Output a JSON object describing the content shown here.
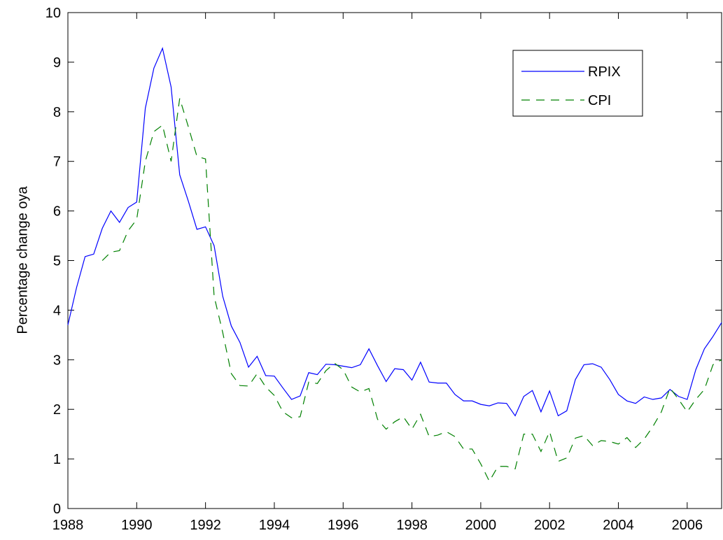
{
  "chart_data": {
    "type": "line",
    "y_label": "Percentage change oya",
    "x": [
      1988,
      1988.25,
      1988.5,
      1988.75,
      1989,
      1989.25,
      1989.5,
      1989.75,
      1990,
      1990.25,
      1990.5,
      1990.75,
      1991,
      1991.25,
      1991.5,
      1991.75,
      1992,
      1992.25,
      1992.5,
      1992.75,
      1993,
      1993.25,
      1993.5,
      1993.75,
      1994,
      1994.25,
      1994.5,
      1994.75,
      1995,
      1995.25,
      1995.5,
      1995.75,
      1996,
      1996.25,
      1996.5,
      1996.75,
      1997,
      1997.25,
      1997.5,
      1997.75,
      1998,
      1998.25,
      1998.5,
      1998.75,
      1999,
      1999.25,
      1999.5,
      1999.75,
      2000,
      2000.25,
      2000.5,
      2000.75,
      2001,
      2001.25,
      2001.5,
      2001.75,
      2002,
      2002.25,
      2002.5,
      2002.75,
      2003,
      2003.25,
      2003.5,
      2003.75,
      2004,
      2004.25,
      2004.5,
      2004.75,
      2005,
      2005.25,
      2005.5,
      2005.75,
      2006,
      2006.25,
      2006.5,
      2006.75,
      2007
    ],
    "series": [
      {
        "name": "RPIX",
        "color": "#0000ff",
        "line_style": "solid",
        "values": [
          3.7,
          4.45,
          5.08,
          5.13,
          5.65,
          6.0,
          5.77,
          6.07,
          6.18,
          8.07,
          8.88,
          9.28,
          8.5,
          6.73,
          6.2,
          5.63,
          5.68,
          5.3,
          4.28,
          3.68,
          3.35,
          2.85,
          3.07,
          2.68,
          2.67,
          2.43,
          2.2,
          2.27,
          2.74,
          2.7,
          2.91,
          2.9,
          2.87,
          2.84,
          2.9,
          3.22,
          2.88,
          2.56,
          2.82,
          2.8,
          2.59,
          2.95,
          2.55,
          2.53,
          2.53,
          2.3,
          2.17,
          2.17,
          2.1,
          2.07,
          2.13,
          2.12,
          1.87,
          2.26,
          2.38,
          1.95,
          2.37,
          1.87,
          1.97,
          2.6,
          2.9,
          2.92,
          2.85,
          2.6,
          2.3,
          2.17,
          2.12,
          2.25,
          2.2,
          2.23,
          2.4,
          2.26,
          2.2,
          2.8,
          3.22,
          3.47,
          3.75
        ]
      },
      {
        "name": "CPI",
        "color": "#008000",
        "line_style": "dashed",
        "values": [
          null,
          null,
          null,
          null,
          5.0,
          5.17,
          5.2,
          5.6,
          5.83,
          7.0,
          7.6,
          7.73,
          7.0,
          8.27,
          7.7,
          7.1,
          7.05,
          4.28,
          3.55,
          2.72,
          2.48,
          2.47,
          2.72,
          2.45,
          2.28,
          1.95,
          1.83,
          1.85,
          2.55,
          2.52,
          2.78,
          2.93,
          2.8,
          2.45,
          2.35,
          2.42,
          1.8,
          1.6,
          1.75,
          1.85,
          1.6,
          1.9,
          1.45,
          1.48,
          1.55,
          1.45,
          1.2,
          1.2,
          0.9,
          0.55,
          0.85,
          0.85,
          0.8,
          1.5,
          1.5,
          1.15,
          1.55,
          0.95,
          1.02,
          1.42,
          1.47,
          1.27,
          1.37,
          1.35,
          1.3,
          1.43,
          1.23,
          1.4,
          1.65,
          1.95,
          2.43,
          2.2,
          1.95,
          2.2,
          2.4,
          2.9,
          3.0
        ]
      }
    ],
    "xlim": [
      1988,
      2007
    ],
    "xticks": [
      1988,
      1990,
      1992,
      1994,
      1996,
      1998,
      2000,
      2002,
      2004,
      2006
    ],
    "ylim": [
      0,
      10
    ],
    "yticks": [
      0,
      1,
      2,
      3,
      4,
      5,
      6,
      7,
      8,
      9,
      10
    ],
    "grid": false,
    "legend": "upper right"
  }
}
